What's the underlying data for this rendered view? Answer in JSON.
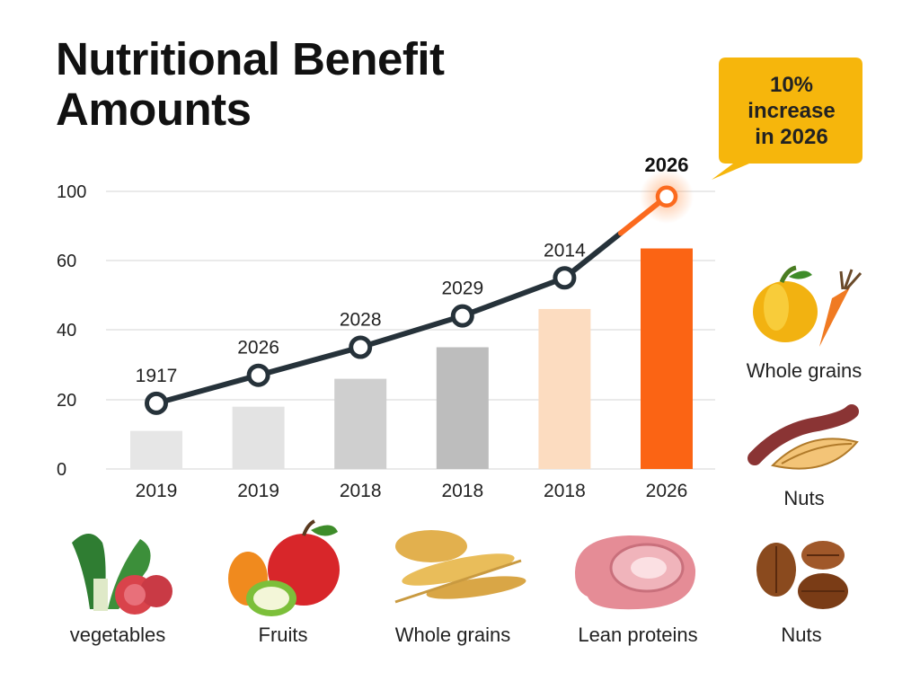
{
  "chart_data": {
    "type": "bar",
    "title": "Nutritional Benefit Amounts",
    "categories": [
      "2019",
      "2019",
      "2018",
      "2018",
      "2018",
      "2026"
    ],
    "y_ticks": [
      "0",
      "20",
      "40",
      "60",
      "100"
    ],
    "series": [
      {
        "type": "bar",
        "values": [
          11,
          18,
          26,
          35,
          46,
          67
        ],
        "colors": [
          "#e6e6e6",
          "#e3e3e3",
          "#cfcfcf",
          "#bdbdbd",
          "#fcdcc0",
          "#fb6414"
        ]
      },
      {
        "type": "line",
        "values": [
          19,
          27,
          35,
          44,
          55,
          97
        ],
        "point_labels": [
          "1917",
          "2026",
          "2028",
          "2029",
          "2014",
          "2026"
        ],
        "color": "#26323a",
        "highlight_color": "#fb6a1e"
      }
    ],
    "annotation": "10%\nincrease\nin 2026",
    "grid": true
  },
  "callout": {
    "line1": "10%",
    "line2": "increase",
    "line3": "in 2026",
    "color": "#f6b60c"
  },
  "foods_bottom": [
    "vegetables",
    "Fruits",
    "Whole grains",
    "Lean proteins",
    "Nuts"
  ],
  "foods_side": [
    "Whole grains",
    "Nuts"
  ]
}
